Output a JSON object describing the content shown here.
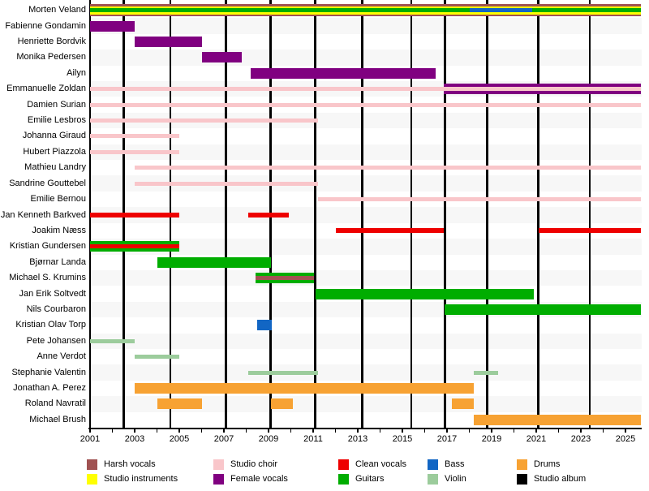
{
  "chart_data": {
    "type": "timeline",
    "description": "Band members timeline (gantt-style): rows are members, colored bars show role tenure, black vertical lines mark studio album releases",
    "axis": {
      "start_year": 2001,
      "end_year": 2025.7,
      "labeled_years": [
        2001,
        2003,
        2005,
        2007,
        2009,
        2011,
        2013,
        2015,
        2017,
        2019,
        2021,
        2023,
        2025
      ],
      "minor_tick_every_year": true,
      "legend_position": "bottom"
    },
    "colors": {
      "harsh_vocals": "#A05252",
      "studio_instruments": "#FFFF00",
      "studio_choir": "#F9C6CA",
      "female_vocals": "#800080",
      "clean_vocals": "#EE0000",
      "guitars": "#00AD00",
      "bass": "#1266C4",
      "violin": "#9CCC9C",
      "drums": "#F7A233",
      "studio_album": "#000000"
    },
    "legend": {
      "columns": [
        {
          "items": [
            {
              "id": "harsh_vocals",
              "label": "Harsh vocals"
            },
            {
              "id": "studio_instruments",
              "label": "Studio instruments"
            }
          ]
        },
        {
          "items": [
            {
              "id": "studio_choir",
              "label": "Studio choir"
            },
            {
              "id": "female_vocals",
              "label": "Female vocals"
            }
          ]
        },
        {
          "items": [
            {
              "id": "clean_vocals",
              "label": "Clean vocals"
            },
            {
              "id": "guitars",
              "label": "Guitars"
            }
          ]
        },
        {
          "items": [
            {
              "id": "bass",
              "label": "Bass"
            },
            {
              "id": "violin",
              "label": "Violin"
            }
          ]
        },
        {
          "items": [
            {
              "id": "drums",
              "label": "Drums"
            },
            {
              "id": "studio_album",
              "label": "Studio album"
            }
          ]
        }
      ]
    },
    "album_release_markers": [
      2002.5,
      2004.6,
      2007.1,
      2009.1,
      2011.1,
      2013.2,
      2015.4,
      2016.9,
      2018.8,
      2021.1,
      2023.4
    ],
    "members": [
      {
        "name": "Morten Veland",
        "segments": [
          {
            "roles": [
              "harsh_vocals",
              "studio_instruments",
              "guitars"
            ],
            "start": 2001,
            "end": 2025.7
          },
          {
            "roles": [
              "bass"
            ],
            "start": 2018.0,
            "end": 2020.8,
            "inner": true
          }
        ]
      },
      {
        "name": "Fabienne Gondamin",
        "segments": [
          {
            "roles": [
              "female_vocals"
            ],
            "start": 2001,
            "end": 2003
          }
        ]
      },
      {
        "name": "Henriette Bordvik",
        "segments": [
          {
            "roles": [
              "female_vocals"
            ],
            "start": 2003,
            "end": 2006
          }
        ]
      },
      {
        "name": "Monika Pedersen",
        "segments": [
          {
            "roles": [
              "female_vocals"
            ],
            "start": 2006,
            "end": 2007.8
          }
        ]
      },
      {
        "name": "Ailyn",
        "segments": [
          {
            "roles": [
              "female_vocals"
            ],
            "start": 2008.2,
            "end": 2016.5
          }
        ]
      },
      {
        "name": "Emmanuelle Zoldan",
        "segments": [
          {
            "roles": [
              "studio_choir"
            ],
            "start": 2001,
            "end": 2016.85
          },
          {
            "roles": [
              "female_vocals",
              "studio_choir"
            ],
            "start": 2016.85,
            "end": 2025.7
          }
        ]
      },
      {
        "name": "Damien Surian",
        "segments": [
          {
            "roles": [
              "studio_choir"
            ],
            "start": 2001,
            "end": 2025.7
          }
        ]
      },
      {
        "name": "Emilie Lesbros",
        "segments": [
          {
            "roles": [
              "studio_choir"
            ],
            "start": 2001,
            "end": 2011.2
          }
        ]
      },
      {
        "name": "Johanna Giraud",
        "segments": [
          {
            "roles": [
              "studio_choir"
            ],
            "start": 2001,
            "end": 2005
          }
        ]
      },
      {
        "name": "Hubert Piazzola",
        "segments": [
          {
            "roles": [
              "studio_choir"
            ],
            "start": 2001,
            "end": 2005
          }
        ]
      },
      {
        "name": "Mathieu Landry",
        "segments": [
          {
            "roles": [
              "studio_choir"
            ],
            "start": 2003,
            "end": 2025.7
          }
        ]
      },
      {
        "name": "Sandrine Gouttebel",
        "segments": [
          {
            "roles": [
              "studio_choir"
            ],
            "start": 2003,
            "end": 2011.2
          }
        ]
      },
      {
        "name": "Emilie Bernou",
        "segments": [
          {
            "roles": [
              "studio_choir"
            ],
            "start": 2011.2,
            "end": 2025.7
          }
        ]
      },
      {
        "name": "Jan Kenneth Barkved",
        "segments": [
          {
            "roles": [
              "clean_vocals"
            ],
            "start": 2001,
            "end": 2005
          },
          {
            "roles": [
              "clean_vocals"
            ],
            "start": 2008.1,
            "end": 2009.9
          }
        ]
      },
      {
        "name": "Joakim Næss",
        "segments": [
          {
            "roles": [
              "clean_vocals"
            ],
            "start": 2012.0,
            "end": 2016.85
          },
          {
            "roles": [
              "clean_vocals"
            ],
            "start": 2021.1,
            "end": 2025.7
          }
        ]
      },
      {
        "name": "Kristian Gundersen",
        "segments": [
          {
            "roles": [
              "guitars",
              "clean_vocals"
            ],
            "start": 2001,
            "end": 2005
          }
        ]
      },
      {
        "name": "Bjørnar Landa",
        "segments": [
          {
            "roles": [
              "guitars"
            ],
            "start": 2004,
            "end": 2009.1
          }
        ]
      },
      {
        "name": "Michael S. Krumins",
        "segments": [
          {
            "roles": [
              "guitars",
              "harsh_vocals"
            ],
            "start": 2008.4,
            "end": 2011.05
          }
        ]
      },
      {
        "name": "Jan Erik Soltvedt",
        "segments": [
          {
            "roles": [
              "guitars"
            ],
            "start": 2011.1,
            "end": 2020.9
          }
        ]
      },
      {
        "name": "Nils Courbaron",
        "segments": [
          {
            "roles": [
              "guitars"
            ],
            "start": 2016.9,
            "end": 2025.7
          }
        ]
      },
      {
        "name": "Kristian Olav Torp",
        "segments": [
          {
            "roles": [
              "bass"
            ],
            "start": 2008.5,
            "end": 2009.15
          }
        ]
      },
      {
        "name": "Pete Johansen",
        "segments": [
          {
            "roles": [
              "violin"
            ],
            "start": 2001,
            "end": 2003
          }
        ]
      },
      {
        "name": "Anne Verdot",
        "segments": [
          {
            "roles": [
              "violin"
            ],
            "start": 2003,
            "end": 2005
          }
        ]
      },
      {
        "name": "Stephanie Valentin",
        "segments": [
          {
            "roles": [
              "violin"
            ],
            "start": 2008.1,
            "end": 2011.2
          },
          {
            "roles": [
              "violin"
            ],
            "start": 2018.2,
            "end": 2019.3
          }
        ]
      },
      {
        "name": "Jonathan A. Perez",
        "segments": [
          {
            "roles": [
              "drums"
            ],
            "start": 2003,
            "end": 2018.2
          }
        ]
      },
      {
        "name": "Roland Navratil",
        "segments": [
          {
            "roles": [
              "drums"
            ],
            "start": 2004,
            "end": 2006
          },
          {
            "roles": [
              "drums"
            ],
            "start": 2009.1,
            "end": 2010.1
          },
          {
            "roles": [
              "drums"
            ],
            "start": 2017.2,
            "end": 2018.2
          }
        ]
      },
      {
        "name": "Michael Brush",
        "segments": [
          {
            "roles": [
              "drums"
            ],
            "start": 2018.2,
            "end": 2025.7
          }
        ]
      }
    ]
  }
}
